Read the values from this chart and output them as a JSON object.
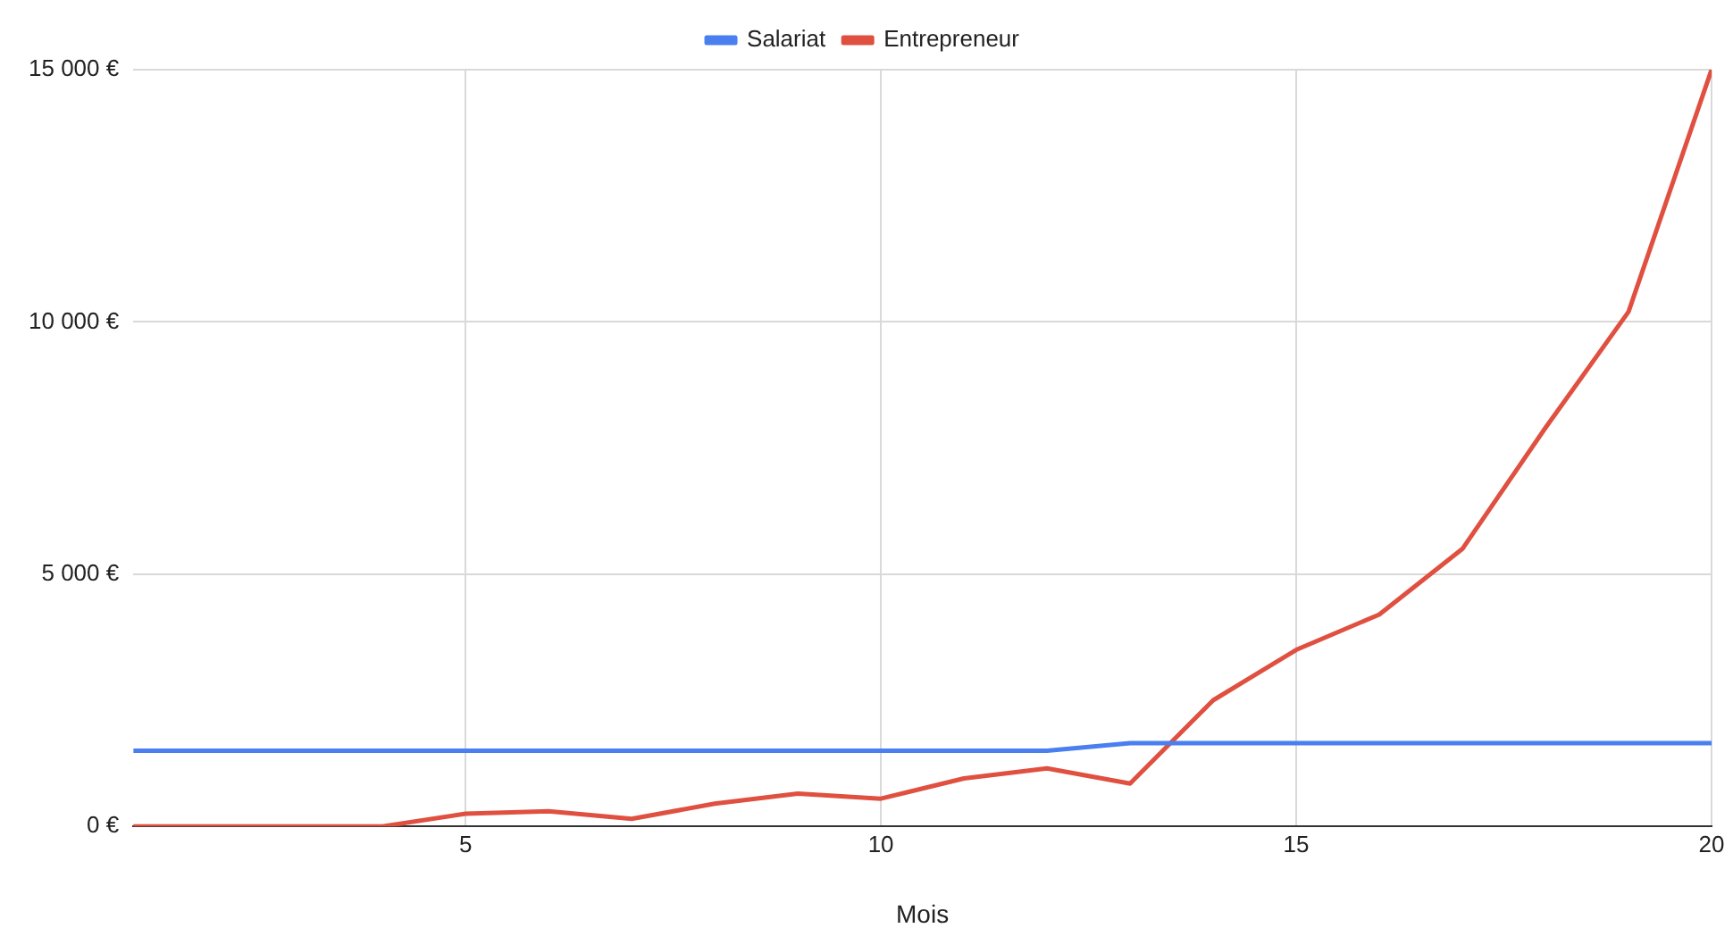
{
  "chart_data": {
    "type": "line",
    "xlabel": "Mois",
    "x": [
      1,
      2,
      3,
      4,
      5,
      6,
      7,
      8,
      9,
      10,
      11,
      12,
      13,
      14,
      15,
      16,
      17,
      18,
      19,
      20
    ],
    "series": [
      {
        "name": "Salariat",
        "color": "#4a7ff0",
        "values": [
          1500,
          1500,
          1500,
          1500,
          1500,
          1500,
          1500,
          1500,
          1500,
          1500,
          1500,
          1500,
          1650,
          1650,
          1650,
          1650,
          1650,
          1650,
          1650,
          1650
        ]
      },
      {
        "name": "Entrepreneur",
        "color": "#e05040",
        "values": [
          0,
          0,
          0,
          0,
          250,
          300,
          150,
          450,
          650,
          550,
          950,
          1150,
          850,
          2500,
          3500,
          4200,
          5500,
          7900,
          10200,
          15000
        ]
      }
    ],
    "xlim": [
      1,
      20
    ],
    "xticks": [
      5,
      10,
      15,
      20
    ],
    "ylim": [
      0,
      15000
    ],
    "yticks": [
      {
        "value": 0,
        "label": "0 €"
      },
      {
        "value": 5000,
        "label": "5 000 €"
      },
      {
        "value": 10000,
        "label": "10 000 €"
      },
      {
        "value": 15000,
        "label": "15 000 €"
      }
    ],
    "grid": true,
    "legend": "top",
    "marker": "none",
    "line_style": "solid"
  }
}
